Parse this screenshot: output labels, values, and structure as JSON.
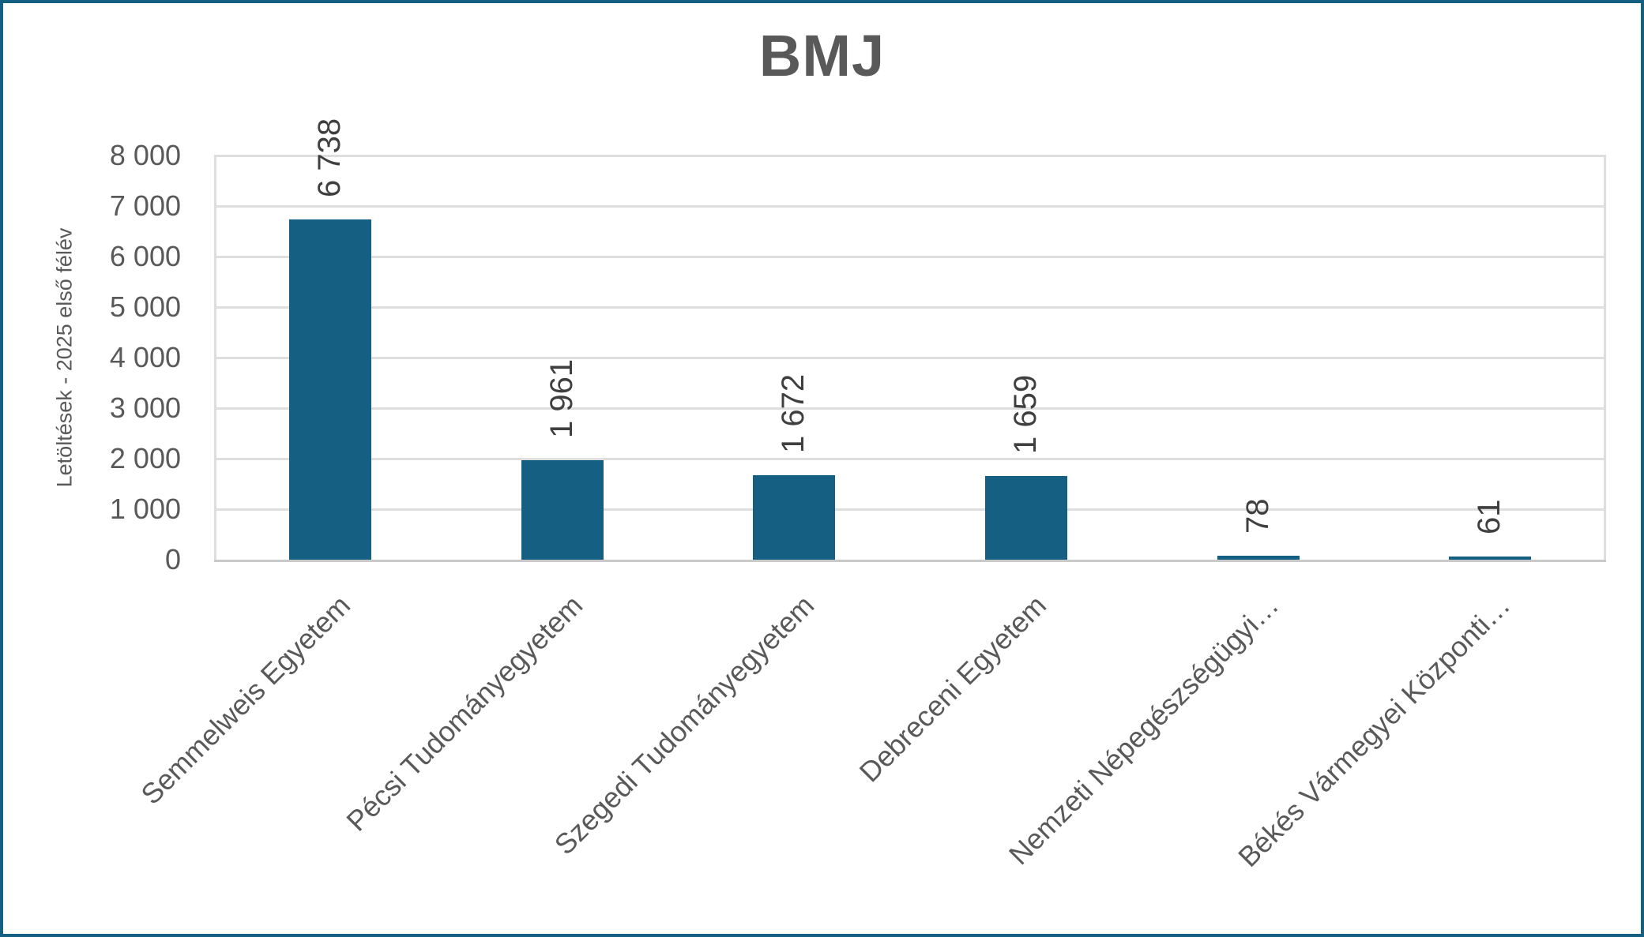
{
  "chart_data": {
    "type": "bar",
    "title": "BMJ",
    "ylabel": "Letöltések - 2025 első félév",
    "xlabel": "",
    "categories": [
      "Semmelweis Egyetem",
      "Pécsi Tudományegyetem",
      "Szegedi Tudományegyetem",
      "Debreceni Egyetem",
      "Nemzeti Népegészségügyi…",
      "Békés Vármegyei Központi…"
    ],
    "values": [
      6738,
      1961,
      1672,
      1659,
      78,
      61
    ],
    "value_labels": [
      "6 738",
      "1 961",
      "1 672",
      "1 659",
      "78",
      "61"
    ],
    "ytick_labels": [
      "0",
      "1 000",
      "2 000",
      "3 000",
      "4 000",
      "5 000",
      "6 000",
      "7 000",
      "8 000"
    ],
    "ylim": [
      0,
      8000
    ],
    "ytick_step": 1000,
    "grid": "horizontal",
    "legend": "none",
    "colors": {
      "bar": "#156082",
      "frame_border": "#156082",
      "title_text": "#595959",
      "axis_text": "#595959",
      "data_label_text": "#3f3f3f",
      "gridline": "#dedede",
      "axis_line": "#c9c9c9"
    }
  }
}
